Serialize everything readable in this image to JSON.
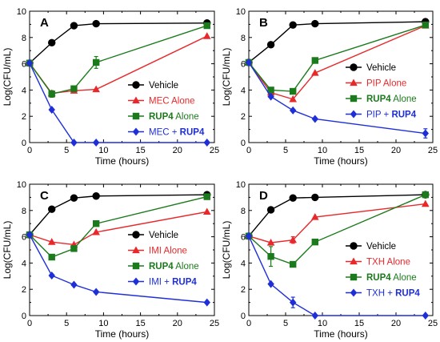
{
  "colors": {
    "black": "#000000",
    "red": "#e8282b",
    "green": "#1b7a1b",
    "blue": "#1f2fd8"
  },
  "chart_data": [
    {
      "type": "line",
      "panel": "A",
      "xlabel": "Time (hours)",
      "ylabel": "Log(CFU/mL)",
      "xlim": [
        0,
        25
      ],
      "ylim": [
        0,
        10
      ],
      "xticks": [
        0,
        5,
        10,
        15,
        20,
        25
      ],
      "yticks": [
        0,
        2,
        4,
        6,
        8,
        10
      ],
      "legend_position": "right",
      "series": [
        {
          "name": "Vehicle",
          "color_key": "black",
          "marker": "circle",
          "x": [
            0,
            3,
            6,
            9,
            24
          ],
          "y": [
            6.05,
            7.6,
            8.9,
            9.05,
            9.1
          ],
          "err": [
            0,
            0,
            0,
            0,
            0
          ]
        },
        {
          "name_parts": [
            {
              "text": "MEC Alone",
              "bold": false
            }
          ],
          "color_key": "red",
          "marker": "triangle",
          "x": [
            0,
            3,
            6,
            9,
            24
          ],
          "y": [
            6.05,
            3.75,
            3.95,
            4.05,
            8.1
          ],
          "err": [
            0,
            0,
            0,
            0,
            0
          ]
        },
        {
          "name_parts": [
            {
              "text": "RUP4",
              "bold": true
            },
            {
              "text": " Alone",
              "bold": false
            }
          ],
          "color_key": "green",
          "marker": "square",
          "x": [
            0,
            3,
            6,
            9,
            24
          ],
          "y": [
            6.05,
            3.7,
            4.1,
            6.1,
            8.9
          ],
          "err": [
            0,
            0.25,
            0,
            0.45,
            0
          ]
        },
        {
          "name_parts": [
            {
              "text": "MEC + ",
              "bold": false
            },
            {
              "text": "RUP4",
              "bold": true
            }
          ],
          "color_key": "blue",
          "marker": "diamond",
          "x": [
            0,
            3,
            6,
            9,
            24
          ],
          "y": [
            6.05,
            2.5,
            0,
            0,
            0
          ],
          "err": [
            0,
            0,
            0,
            0,
            0
          ]
        }
      ]
    },
    {
      "type": "line",
      "panel": "B",
      "xlabel": "Time (hours)",
      "ylabel": "Log(CFU/mL)",
      "xlim": [
        0,
        25
      ],
      "ylim": [
        0,
        10
      ],
      "xticks": [
        0,
        5,
        10,
        15,
        20,
        25
      ],
      "yticks": [
        0,
        2,
        4,
        6,
        8,
        10
      ],
      "legend_position": "right",
      "series": [
        {
          "name": "Vehicle",
          "color_key": "black",
          "marker": "circle",
          "x": [
            0,
            3,
            6,
            9,
            24
          ],
          "y": [
            6.1,
            7.45,
            8.95,
            9.05,
            9.2
          ],
          "err": [
            0,
            0,
            0,
            0,
            0
          ]
        },
        {
          "name_parts": [
            {
              "text": "PIP Alone",
              "bold": false
            }
          ],
          "color_key": "red",
          "marker": "triangle",
          "x": [
            0,
            3,
            6,
            9,
            24
          ],
          "y": [
            6.1,
            3.8,
            3.3,
            5.3,
            8.9
          ],
          "err": [
            0,
            0,
            0,
            0,
            0
          ]
        },
        {
          "name_parts": [
            {
              "text": "RUP4",
              "bold": true
            },
            {
              "text": " Alone",
              "bold": false
            }
          ],
          "color_key": "green",
          "marker": "square",
          "x": [
            0,
            3,
            6,
            9,
            24
          ],
          "y": [
            6.1,
            4.0,
            3.9,
            6.25,
            8.95
          ],
          "err": [
            0,
            0,
            0,
            0,
            0
          ]
        },
        {
          "name_parts": [
            {
              "text": "PIP + ",
              "bold": false
            },
            {
              "text": "RUP4",
              "bold": true
            }
          ],
          "color_key": "blue",
          "marker": "diamond",
          "x": [
            0,
            3,
            6,
            9,
            24
          ],
          "y": [
            6.1,
            3.5,
            2.45,
            1.8,
            0.7
          ],
          "err": [
            0,
            0,
            0,
            0,
            0.35
          ]
        }
      ]
    },
    {
      "type": "line",
      "panel": "C",
      "xlabel": "Time (hours)",
      "ylabel": "Log(CFU/mL)",
      "xlim": [
        0,
        25
      ],
      "ylim": [
        0,
        10
      ],
      "xticks": [
        0,
        5,
        10,
        15,
        20,
        25
      ],
      "yticks": [
        0,
        2,
        4,
        6,
        8,
        10
      ],
      "legend_position": "right",
      "series": [
        {
          "name": "Vehicle",
          "color_key": "black",
          "marker": "circle",
          "x": [
            0,
            3,
            6,
            9,
            24
          ],
          "y": [
            6.15,
            8.1,
            8.95,
            9.1,
            9.2
          ],
          "err": [
            0,
            0,
            0,
            0,
            0
          ]
        },
        {
          "name_parts": [
            {
              "text": "IMI Alone",
              "bold": false
            }
          ],
          "color_key": "red",
          "marker": "triangle",
          "x": [
            0,
            3,
            6,
            9,
            24
          ],
          "y": [
            6.15,
            5.6,
            5.4,
            6.35,
            7.9
          ],
          "err": [
            0,
            0,
            0,
            0,
            0
          ]
        },
        {
          "name_parts": [
            {
              "text": "RUP4",
              "bold": true
            },
            {
              "text": " Alone",
              "bold": false
            }
          ],
          "color_key": "green",
          "marker": "square",
          "x": [
            0,
            3,
            6,
            9,
            24
          ],
          "y": [
            6.15,
            4.45,
            5.1,
            7.0,
            9.05
          ],
          "err": [
            0,
            0,
            0.2,
            0,
            0
          ]
        },
        {
          "name_parts": [
            {
              "text": "IMI + ",
              "bold": false
            },
            {
              "text": "RUP4",
              "bold": true
            }
          ],
          "color_key": "blue",
          "marker": "diamond",
          "x": [
            0,
            3,
            6,
            9,
            24
          ],
          "y": [
            6.15,
            3.05,
            2.35,
            1.8,
            1.0
          ],
          "err": [
            0,
            0,
            0,
            0,
            0
          ]
        }
      ]
    },
    {
      "type": "line",
      "panel": "D",
      "xlabel": "Time (hours)",
      "ylabel": "Log(CFU/mL)",
      "xlim": [
        0,
        25
      ],
      "ylim": [
        0,
        10
      ],
      "xticks": [
        0,
        5,
        10,
        15,
        20,
        25
      ],
      "yticks": [
        0,
        2,
        4,
        6,
        8,
        10
      ],
      "legend_position": "right",
      "series": [
        {
          "name": "Vehicle",
          "color_key": "black",
          "marker": "circle",
          "x": [
            0,
            3,
            6,
            9,
            24
          ],
          "y": [
            6.05,
            8.05,
            8.95,
            9.0,
            9.2
          ],
          "err": [
            0,
            0,
            0,
            0,
            0
          ]
        },
        {
          "name_parts": [
            {
              "text": "TXH Alone",
              "bold": false
            }
          ],
          "color_key": "red",
          "marker": "triangle",
          "x": [
            0,
            3,
            6,
            9,
            24
          ],
          "y": [
            6.05,
            5.55,
            5.75,
            7.5,
            8.5
          ],
          "err": [
            0,
            0,
            0.25,
            0,
            0
          ]
        },
        {
          "name_parts": [
            {
              "text": "RUP4",
              "bold": true
            },
            {
              "text": " Alone",
              "bold": false
            }
          ],
          "color_key": "green",
          "marker": "square",
          "x": [
            0,
            3,
            6,
            9,
            24
          ],
          "y": [
            6.05,
            4.5,
            3.9,
            5.6,
            9.2
          ],
          "err": [
            0,
            0.75,
            0,
            0,
            0
          ]
        },
        {
          "name_parts": [
            {
              "text": "TXH + ",
              "bold": false
            },
            {
              "text": "RUP4",
              "bold": true
            }
          ],
          "color_key": "blue",
          "marker": "diamond",
          "x": [
            0,
            3,
            6,
            9,
            24
          ],
          "y": [
            6.05,
            2.4,
            1.0,
            0,
            0
          ],
          "err": [
            0,
            0,
            0.4,
            0,
            0
          ]
        }
      ]
    }
  ]
}
